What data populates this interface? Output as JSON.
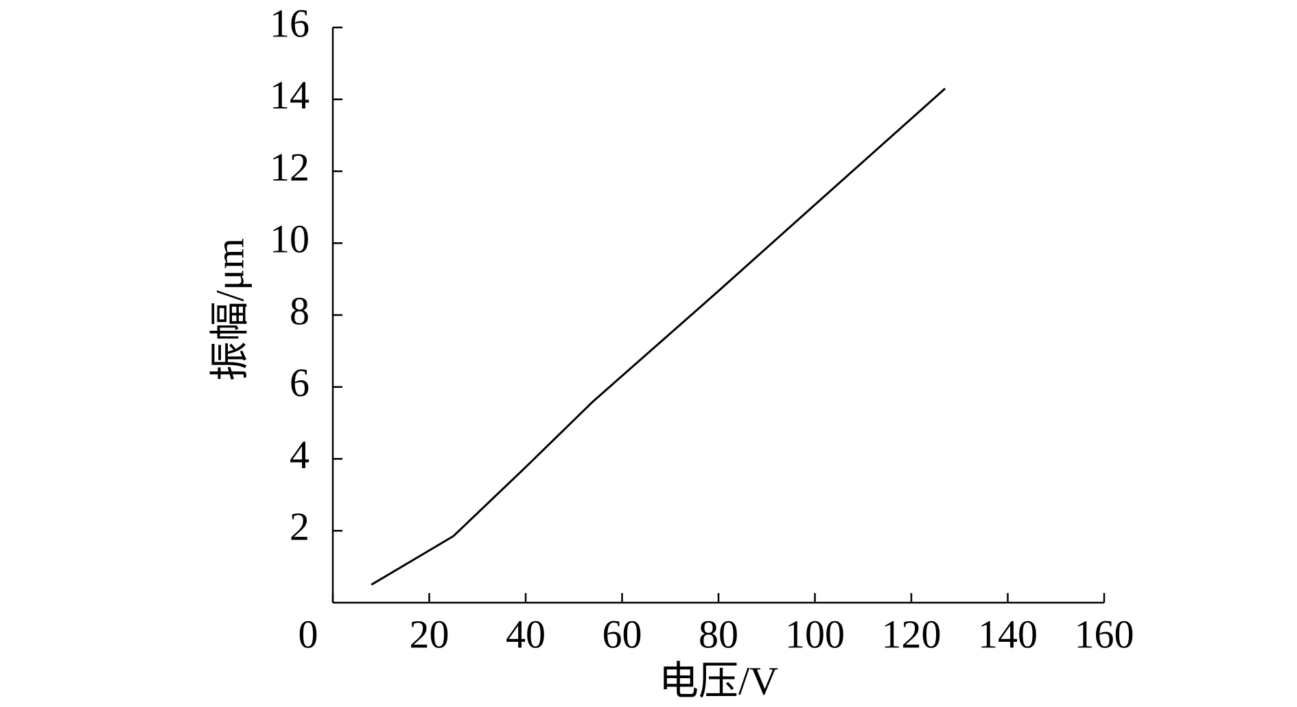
{
  "chart_data": {
    "type": "line",
    "x_label": "电压/V",
    "y_label": "振幅/μm",
    "x": [
      8,
      25,
      40,
      54,
      80,
      100,
      127
    ],
    "series": [
      {
        "color": "#000000",
        "values": [
          0.5,
          1.85,
          3.77,
          5.6,
          8.67,
          11.07,
          14.3
        ]
      }
    ],
    "xlim": [
      0,
      160
    ],
    "xticks": [
      0,
      20,
      40,
      60,
      80,
      100,
      120,
      140,
      160
    ],
    "ylim": [
      0,
      16
    ],
    "yticks": [
      2,
      4,
      6,
      8,
      10,
      12,
      14,
      16
    ],
    "grid": false
  }
}
